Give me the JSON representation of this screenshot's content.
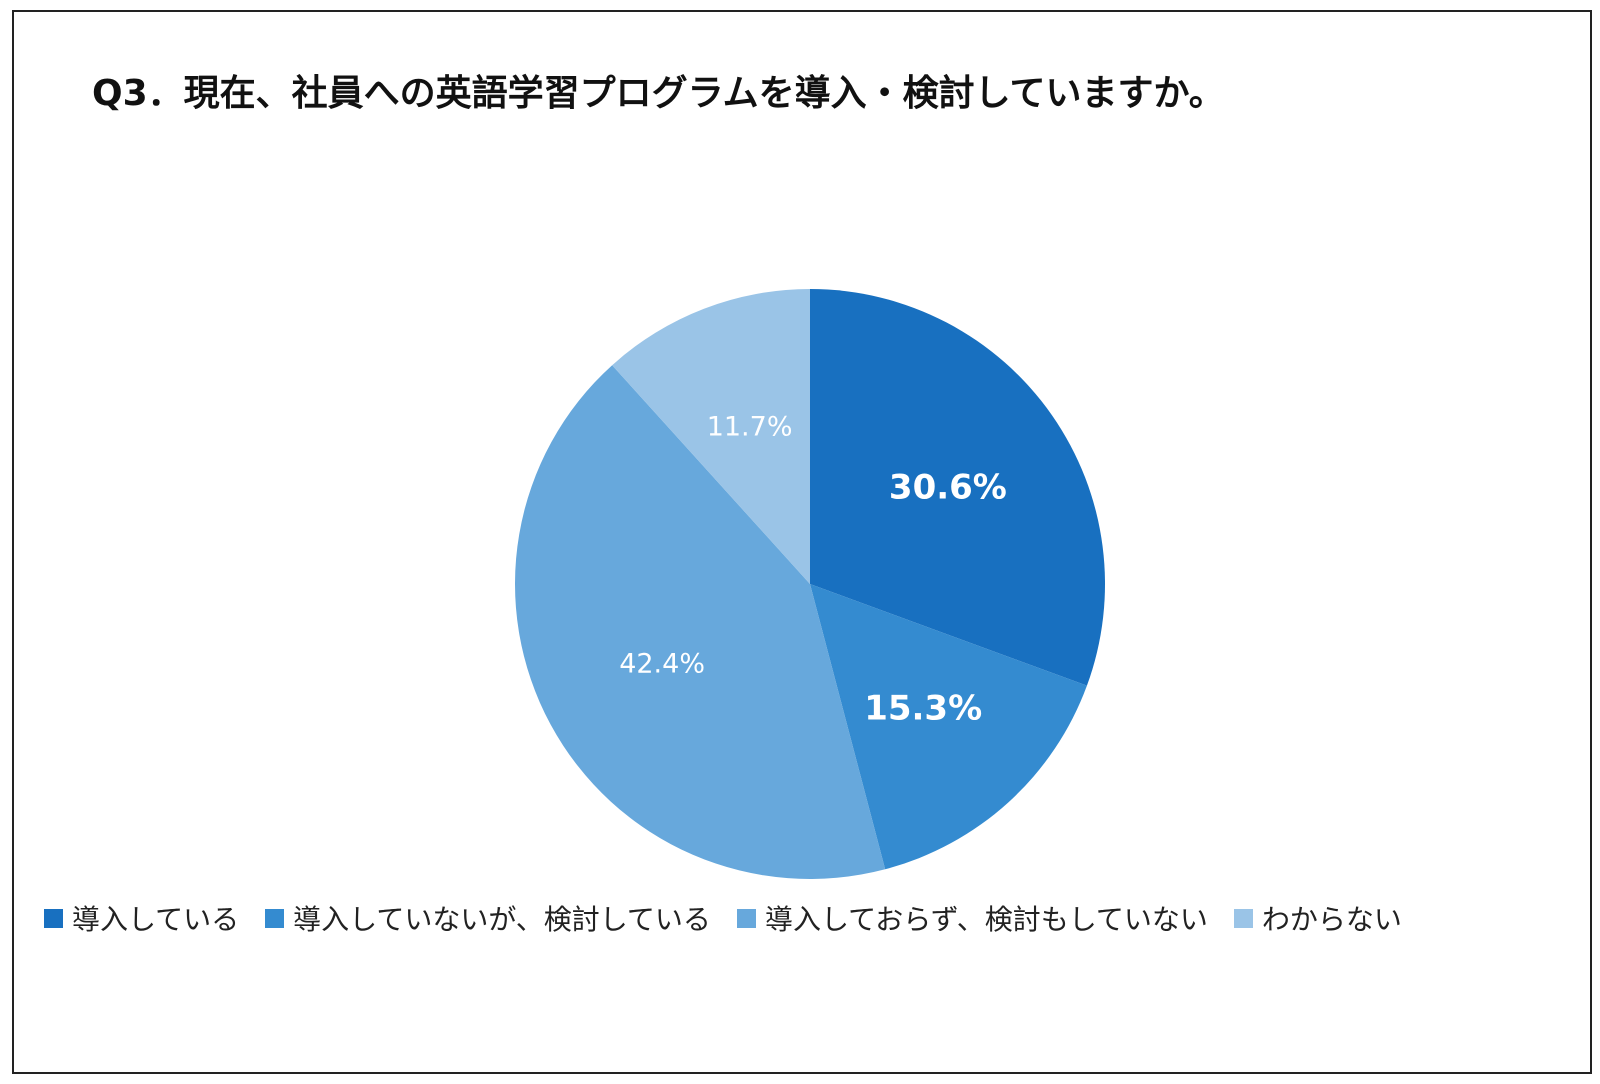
{
  "title": "Q3．現在、社員への英語学習プログラムを導入・検討していますか。",
  "chart_data": {
    "type": "pie",
    "title": "Q3．現在、社員への英語学習プログラムを導入・検討していますか。",
    "legend_position": "bottom",
    "slices": [
      {
        "label": "導入している",
        "value": 30.6,
        "display": "30.6%",
        "color": "#1870C0",
        "bold": true
      },
      {
        "label": "導入していないが、検討している",
        "value": 15.3,
        "display": "15.3%",
        "color": "#348BD0",
        "bold": true
      },
      {
        "label": "導入しておらず、検討もしていない",
        "value": 42.4,
        "display": "42.4%",
        "color": "#67A8DC",
        "bold": false
      },
      {
        "label": "わからない",
        "value": 11.7,
        "display": "11.7%",
        "color": "#9AC4E7",
        "bold": false
      }
    ]
  }
}
